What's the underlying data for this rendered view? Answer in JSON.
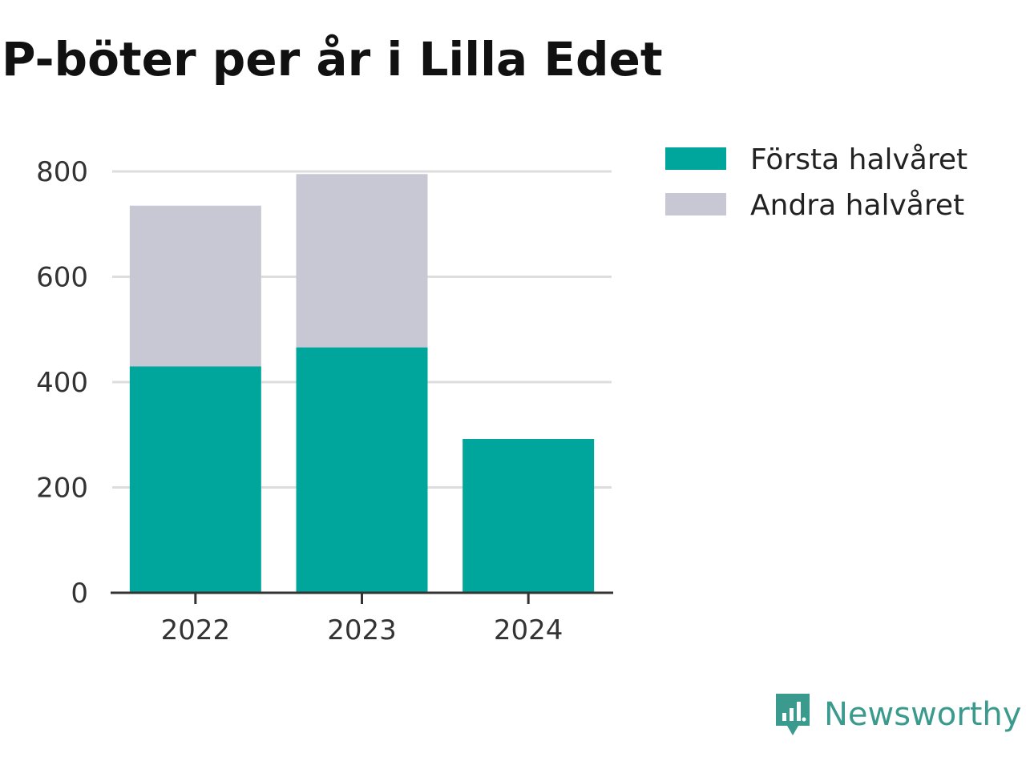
{
  "title": "P-böter per år i Lilla Edet",
  "brand": {
    "name": "Newsworthy",
    "icon": "bar-chart-speech-bubble-icon",
    "color": "#3a9a8d"
  },
  "colors": {
    "series_1": "#00a59b",
    "series_2": "#c8c8d4",
    "grid": "#dddddd",
    "axis": "#333333"
  },
  "chart_data": {
    "type": "bar",
    "stacked": true,
    "title": "P-böter per år i Lilla Edet",
    "categories": [
      "2022",
      "2023",
      "2024"
    ],
    "series": [
      {
        "name": "Första halvåret",
        "values": [
          430,
          466,
          292
        ]
      },
      {
        "name": "Andra halvåret",
        "values": [
          305,
          329,
          0
        ]
      }
    ],
    "ylim": [
      0,
      800
    ],
    "yticks": [
      "0",
      "200",
      "400",
      "600",
      "800"
    ],
    "grid": true,
    "legend": "right"
  }
}
